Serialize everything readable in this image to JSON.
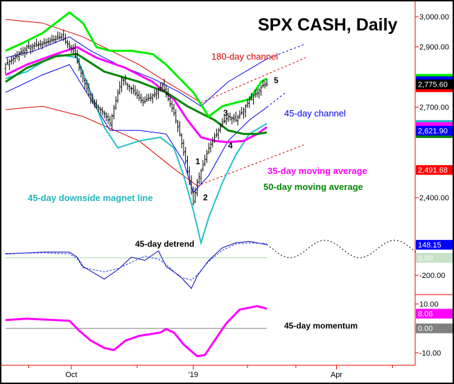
{
  "chart_data": {
    "type": "line",
    "title": "SPX CASH, Daily",
    "x_unit": "trading bar index",
    "x_range": [
      0,
      212
    ],
    "x_ticks": [
      {
        "label": "Oct",
        "x": 34
      },
      {
        "label": "'19",
        "x": 97
      },
      {
        "label": "Apr",
        "x": 171
      }
    ],
    "price_panel": {
      "ylim": [
        2260,
        3060
      ],
      "y_ticks": [
        {
          "label": "3,000.00",
          "v": 3000
        },
        {
          "label": "2,900.00",
          "v": 2900
        },
        {
          "label": "2,700.00",
          "v": 2700
        },
        {
          "label": "2,400.00",
          "v": 2400
        }
      ],
      "price_close": [
        [
          0,
          2841
        ],
        [
          11,
          2899
        ],
        [
          19,
          2910
        ],
        [
          29,
          2933
        ],
        [
          35,
          2887
        ],
        [
          40,
          2795
        ],
        [
          44,
          2726
        ],
        [
          51,
          2680
        ],
        [
          54,
          2646
        ],
        [
          60,
          2795
        ],
        [
          65,
          2761
        ],
        [
          71,
          2715
        ],
        [
          76,
          2738
        ],
        [
          81,
          2772
        ],
        [
          87,
          2680
        ],
        [
          90,
          2611
        ],
        [
          93,
          2519
        ],
        [
          97,
          2382
        ],
        [
          99,
          2450
        ],
        [
          102,
          2508
        ],
        [
          105,
          2565
        ],
        [
          108,
          2600
        ],
        [
          112,
          2646
        ],
        [
          115,
          2669
        ],
        [
          119,
          2657
        ],
        [
          123,
          2692
        ],
        [
          126,
          2726
        ],
        [
          130,
          2749
        ],
        [
          133,
          2772
        ],
        [
          135,
          2775.6
        ]
      ],
      "series": [
        {
          "name": "45-day upper envelope",
          "color": "#00ee00",
          "width": 3,
          "values": [
            [
              0,
              2887
            ],
            [
              8,
              2910
            ],
            [
              19,
              2945
            ],
            [
              33,
              3014
            ],
            [
              40,
              2979
            ],
            [
              47,
              2899
            ],
            [
              54,
              2887
            ],
            [
              65,
              2887
            ],
            [
              76,
              2876
            ],
            [
              83,
              2841
            ],
            [
              90,
              2795
            ],
            [
              97,
              2749
            ],
            [
              105,
              2669
            ],
            [
              112,
              2703
            ],
            [
              119,
              2715
            ],
            [
              126,
              2726
            ],
            [
              132,
              2784
            ],
            [
              135,
              2795
            ]
          ]
        },
        {
          "name": "35-day moving average",
          "color": "#ff00ff",
          "width": 3,
          "values": [
            [
              0,
              2807
            ],
            [
              11,
              2841
            ],
            [
              26,
              2876
            ],
            [
              37,
              2899
            ],
            [
              47,
              2864
            ],
            [
              62,
              2830
            ],
            [
              76,
              2784
            ],
            [
              87,
              2726
            ],
            [
              94,
              2657
            ],
            [
              101,
              2600
            ],
            [
              108,
              2588
            ],
            [
              115,
              2584
            ],
            [
              123,
              2588
            ],
            [
              130,
              2611
            ],
            [
              135,
              2634
            ]
          ]
        },
        {
          "name": "50-day moving average",
          "color": "#008800",
          "width": 3,
          "values": [
            [
              0,
              2784
            ],
            [
              11,
              2830
            ],
            [
              26,
              2869
            ],
            [
              37,
              2876
            ],
            [
              51,
              2818
            ],
            [
              69,
              2784
            ],
            [
              83,
              2749
            ],
            [
              94,
              2703
            ],
            [
              101,
              2680
            ],
            [
              108,
              2657
            ],
            [
              115,
              2623
            ],
            [
              123,
              2611
            ],
            [
              130,
              2611
            ],
            [
              135,
              2616
            ]
          ]
        },
        {
          "name": "45-day downside magnet line",
          "color": "#20c0c8",
          "width": 2,
          "values": [
            [
              0,
              2795
            ],
            [
              11,
              2818
            ],
            [
              26,
              2876
            ],
            [
              37,
              2864
            ],
            [
              44,
              2749
            ],
            [
              51,
              2634
            ],
            [
              58,
              2565
            ],
            [
              69,
              2588
            ],
            [
              80,
              2600
            ],
            [
              87,
              2565
            ],
            [
              92,
              2473
            ],
            [
              97,
              2358
            ],
            [
              101,
              2250
            ],
            [
              105,
              2335
            ],
            [
              112,
              2450
            ],
            [
              119,
              2542
            ],
            [
              126,
              2611
            ],
            [
              135,
              2646
            ]
          ]
        },
        {
          "name": "45-day channel upper",
          "color": "#0000ee",
          "width": 1,
          "values": [
            [
              0,
              2864
            ],
            [
              15,
              2887
            ],
            [
              33,
              2933
            ],
            [
              44,
              2887
            ],
            [
              58,
              2841
            ],
            [
              76,
              2795
            ],
            [
              90,
              2749
            ],
            [
              101,
              2703
            ],
            [
              115,
              2784
            ],
            [
              130,
              2841
            ],
            [
              135,
              2860
            ]
          ],
          "projection": [
            [
              135,
              2860
            ],
            [
              155,
              2910
            ]
          ]
        },
        {
          "name": "45-day channel lower",
          "color": "#0000ee",
          "width": 1,
          "values": [
            [
              0,
              2749
            ],
            [
              19,
              2807
            ],
            [
              33,
              2841
            ],
            [
              44,
              2726
            ],
            [
              54,
              2623
            ],
            [
              69,
              2623
            ],
            [
              83,
              2611
            ],
            [
              92,
              2519
            ],
            [
              97,
              2416
            ],
            [
              105,
              2473
            ],
            [
              115,
              2588
            ],
            [
              126,
              2657
            ],
            [
              135,
              2700
            ]
          ],
          "projection": [
            [
              135,
              2700
            ],
            [
              145,
              2750
            ]
          ]
        },
        {
          "name": "180-day channel upper",
          "color": "#dd0000",
          "width": 1,
          "values": [
            [
              0,
              2991
            ],
            [
              19,
              2979
            ],
            [
              40,
              2933
            ],
            [
              69,
              2841
            ],
            [
              83,
              2784
            ],
            [
              101,
              2715
            ]
          ],
          "projection": [
            [
              101,
              2715
            ],
            [
              155,
              2864
            ]
          ]
        },
        {
          "name": "180-day channel lower",
          "color": "#dd0000",
          "width": 1,
          "values": [
            [
              0,
              2692
            ],
            [
              19,
              2703
            ],
            [
              40,
              2669
            ],
            [
              69,
              2588
            ],
            [
              87,
              2496
            ],
            [
              99,
              2439
            ]
          ],
          "projection": [
            [
              99,
              2439
            ],
            [
              155,
              2577
            ]
          ]
        }
      ],
      "last_value_labels": [
        {
          "text": "2,775.60",
          "bg": "#000000",
          "fg": "#ffffff",
          "v": 2775.6
        },
        {
          "text": "2,621.90",
          "bg": "#0000ff",
          "fg": "#ffffff",
          "v": 2621.9
        },
        {
          "text": "2,491.68",
          "bg": "#ff0000",
          "fg": "#ffffff",
          "v": 2491.68
        }
      ],
      "annotations": [
        {
          "text": "180-day channel",
          "color": "#dd0000"
        },
        {
          "text": "45-day channel",
          "color": "#0000ee"
        },
        {
          "text": "35-day moving average",
          "color": "#ff00ff"
        },
        {
          "text": "50-day moving average",
          "color": "#008800"
        },
        {
          "text": "45-day downside magnet line",
          "color": "#20b8c0"
        }
      ],
      "wave_labels": [
        "1",
        "2",
        "3",
        "4",
        "5"
      ]
    },
    "detrend_panel": {
      "label": "45-day detrend",
      "ylim": [
        -420,
        260
      ],
      "y_ticks": [
        {
          "label": "-200.00",
          "v": -200
        }
      ],
      "values": [
        [
          0,
          43
        ],
        [
          20,
          64
        ],
        [
          33,
          64
        ],
        [
          37,
          7
        ],
        [
          40,
          -100
        ],
        [
          51,
          -243
        ],
        [
          58,
          -136
        ],
        [
          65,
          7
        ],
        [
          72,
          -29
        ],
        [
          79,
          79
        ],
        [
          83,
          -100
        ],
        [
          90,
          -207
        ],
        [
          96,
          -350
        ],
        [
          99,
          -207
        ],
        [
          105,
          -29
        ],
        [
          112,
          114
        ],
        [
          119,
          171
        ],
        [
          126,
          186
        ],
        [
          135,
          150
        ]
      ],
      "projection_center": 100,
      "projection_amplitude": 100,
      "projection_period": 36,
      "projection_range": [
        135,
        212
      ],
      "last_value_labels": [
        {
          "text": "148.15",
          "bg": "#0000ff",
          "fg": "#ffffff",
          "v": 148.15
        },
        {
          "text": "0.00",
          "bg": "#c8e0c8",
          "fg": "#ffffff",
          "v": 0
        }
      ]
    },
    "momentum_panel": {
      "label": "45-day momentum",
      "ylim": [
        -14,
        13
      ],
      "y_ticks": [
        {
          "label": "10.00",
          "v": 10
        },
        {
          "label": "-10.00",
          "v": -10
        }
      ],
      "values": [
        [
          0,
          3.4
        ],
        [
          11,
          4
        ],
        [
          33,
          3.1
        ],
        [
          38,
          -0.9
        ],
        [
          44,
          -5
        ],
        [
          51,
          -8
        ],
        [
          56,
          -8.9
        ],
        [
          62,
          -5
        ],
        [
          69,
          -3.1
        ],
        [
          80,
          -1.7
        ],
        [
          83,
          -0.3
        ],
        [
          87,
          -1.7
        ],
        [
          92,
          -6.6
        ],
        [
          99,
          -11.4
        ],
        [
          103,
          -10.9
        ],
        [
          108,
          -5
        ],
        [
          114,
          2
        ],
        [
          121,
          7.7
        ],
        [
          130,
          9.1
        ],
        [
          135,
          8.06
        ]
      ],
      "last_value_labels": [
        {
          "text": "8.06",
          "bg": "#ff00ff",
          "fg": "#ffffff",
          "v": 8.06
        },
        {
          "text": "0.00",
          "bg": "#808080",
          "fg": "#ffffff",
          "v": 0
        }
      ]
    }
  }
}
